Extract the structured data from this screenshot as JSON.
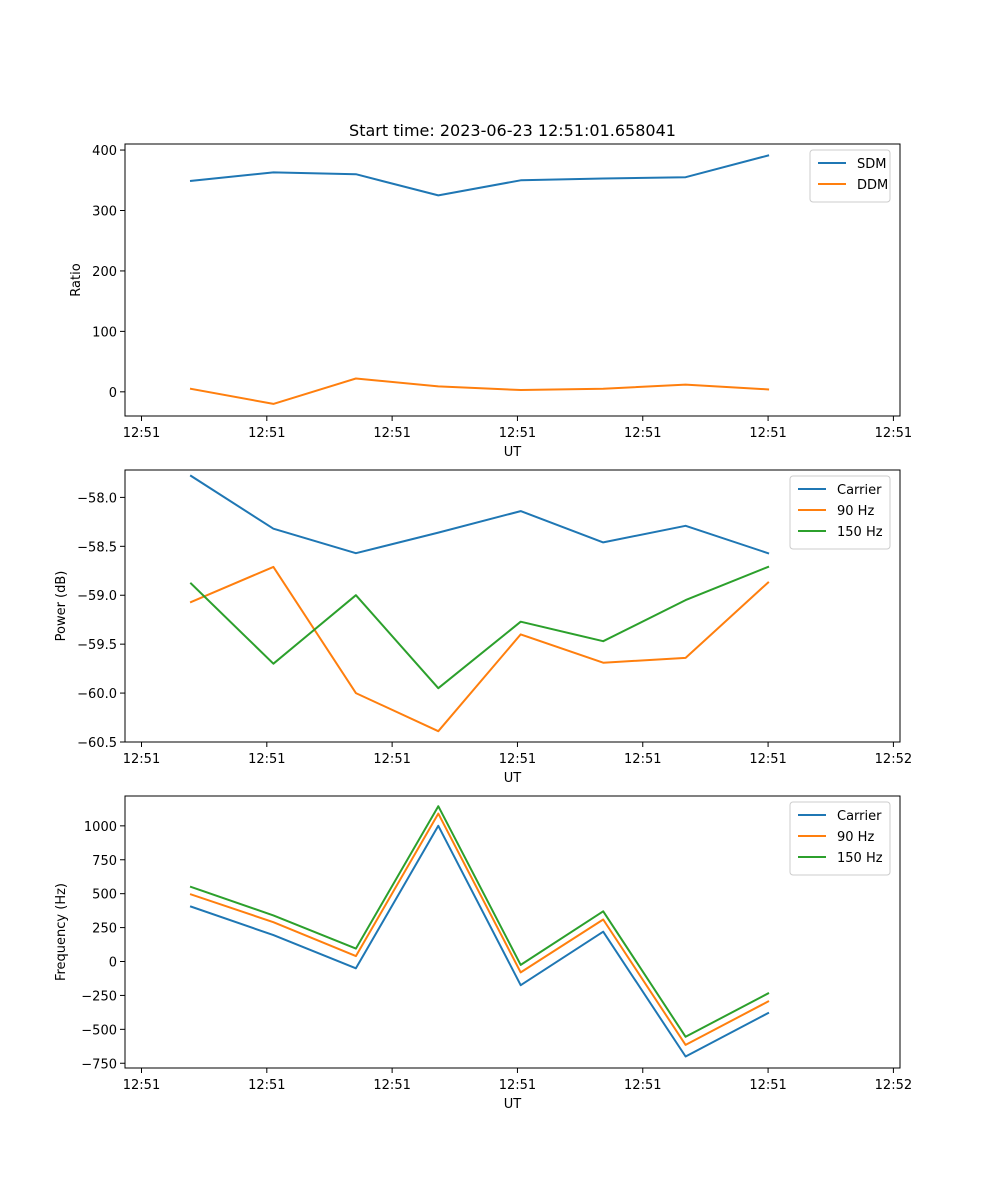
{
  "chart_data": [
    {
      "type": "line",
      "title": "Start time: 2023-06-23 12:51:01.658041",
      "xlabel": "UT",
      "ylabel": "Ratio",
      "x_tick_labels": [
        "12:51",
        "12:51",
        "12:51",
        "12:51",
        "12:51",
        "12:51",
        "12:51"
      ],
      "y_ticks": [
        0,
        100,
        200,
        300,
        400
      ],
      "y_tick_labels": [
        "0",
        "100",
        "200",
        "300",
        "400"
      ],
      "ylim": [
        -40,
        410
      ],
      "legend_position": "top-right",
      "x": [
        1,
        2,
        3,
        4,
        5,
        6,
        7,
        8
      ],
      "series": [
        {
          "name": "SDM",
          "color": "#1f77b4",
          "values": [
            349,
            363,
            360,
            325,
            350,
            353,
            355,
            391
          ]
        },
        {
          "name": "DDM",
          "color": "#ff7f0e",
          "values": [
            5,
            -20,
            22,
            9,
            3,
            5,
            12,
            4
          ]
        }
      ]
    },
    {
      "type": "line",
      "title": "",
      "xlabel": "UT",
      "ylabel": "Power (dB)",
      "x_tick_labels": [
        "12:51",
        "12:51",
        "12:51",
        "12:51",
        "12:51",
        "12:51",
        "12:52"
      ],
      "y_ticks": [
        -60.5,
        -60.0,
        -59.5,
        -59.0,
        -58.5,
        -58.0
      ],
      "y_tick_labels": [
        "−60.5",
        "−60.0",
        "−59.5",
        "−59.0",
        "−58.5",
        "−58.0"
      ],
      "ylim": [
        -60.5,
        -57.72
      ],
      "legend_position": "top-right",
      "x": [
        1,
        2,
        3,
        4,
        5,
        6,
        7,
        8
      ],
      "series": [
        {
          "name": "Carrier",
          "color": "#1f77b4",
          "values": [
            -57.78,
            -58.32,
            -58.57,
            -58.36,
            -58.14,
            -58.46,
            -58.29,
            -58.57
          ]
        },
        {
          "name": "90 Hz",
          "color": "#ff7f0e",
          "values": [
            -59.07,
            -58.71,
            -60.0,
            -60.39,
            -59.4,
            -59.69,
            -59.64,
            -58.87
          ]
        },
        {
          "name": "150 Hz",
          "color": "#2ca02c",
          "values": [
            -58.88,
            -59.7,
            -59.0,
            -59.95,
            -59.27,
            -59.47,
            -59.05,
            -58.71
          ]
        }
      ]
    },
    {
      "type": "line",
      "title": "",
      "xlabel": "UT",
      "ylabel": "Frequency (Hz)",
      "x_tick_labels": [
        "12:51",
        "12:51",
        "12:51",
        "12:51",
        "12:51",
        "12:51",
        "12:52"
      ],
      "y_ticks": [
        -750,
        -500,
        -250,
        0,
        250,
        500,
        750,
        1000
      ],
      "y_tick_labels": [
        "−750",
        "−500",
        "−250",
        "0",
        "250",
        "500",
        "750",
        "1000"
      ],
      "ylim": [
        -785,
        1220
      ],
      "legend_position": "top-right",
      "x": [
        1,
        2,
        3,
        4,
        5,
        6,
        7,
        8
      ],
      "series": [
        {
          "name": "Carrier",
          "color": "#1f77b4",
          "values": [
            405,
            195,
            -50,
            1000,
            -175,
            220,
            -700,
            -380
          ]
        },
        {
          "name": "90 Hz",
          "color": "#ff7f0e",
          "values": [
            495,
            290,
            40,
            1090,
            -80,
            310,
            -615,
            -295
          ]
        },
        {
          "name": "150 Hz",
          "color": "#2ca02c",
          "values": [
            550,
            340,
            95,
            1145,
            -25,
            370,
            -555,
            -235
          ]
        }
      ]
    }
  ]
}
